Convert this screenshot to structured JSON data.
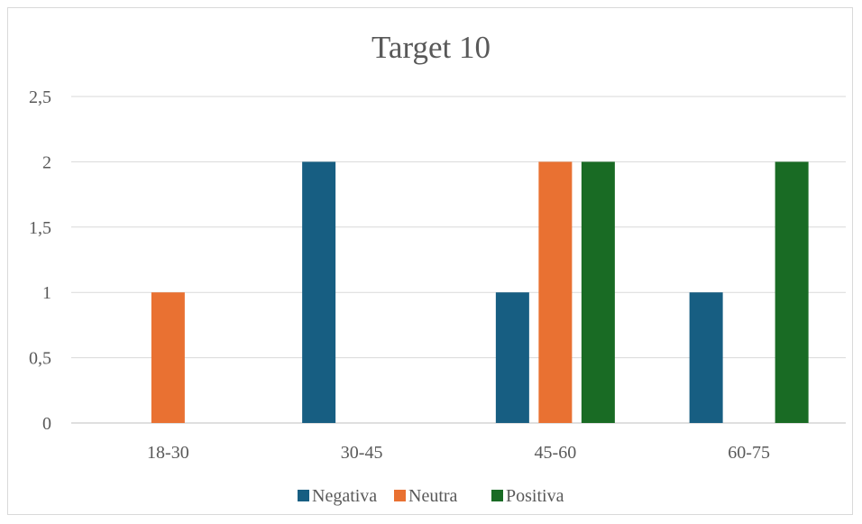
{
  "chart_data": {
    "type": "bar",
    "title": "Target 10",
    "xlabel": "",
    "ylabel": "",
    "categories": [
      "18-30",
      "30-45",
      "45-60",
      "60-75"
    ],
    "ylim": [
      0,
      2.5
    ],
    "yticks": [
      "0",
      "0,5",
      "1",
      "1,5",
      "2",
      "2,5"
    ],
    "grid": true,
    "legend_position": "bottom",
    "series": [
      {
        "name": "Negativa",
        "color": "#175e82",
        "values": [
          0,
          2,
          1,
          1
        ]
      },
      {
        "name": "Neutra",
        "color": "#e97132",
        "values": [
          1,
          0,
          2,
          0
        ]
      },
      {
        "name": "Positiva",
        "color": "#196b24",
        "values": [
          0,
          0,
          2,
          2
        ]
      }
    ]
  }
}
